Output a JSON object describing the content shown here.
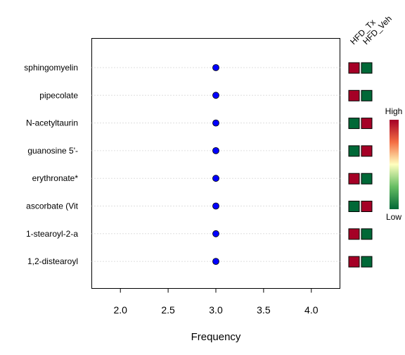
{
  "chart_data": {
    "type": "scatter",
    "xlabel": "Frequency",
    "xlim": [
      1.7,
      4.3
    ],
    "xticks": [
      2.0,
      2.5,
      3.0,
      3.5,
      4.0
    ],
    "xtick_labels": [
      "2.0",
      "2.5",
      "3.0",
      "3.5",
      "4.0"
    ],
    "grid": "horizontal dotted",
    "point_color": "#0000ff",
    "rows": [
      {
        "label": "sphingomyelin",
        "value": 3.0,
        "heat": [
          "high",
          "low"
        ]
      },
      {
        "label": "pipecolate",
        "value": 3.0,
        "heat": [
          "high",
          "low"
        ]
      },
      {
        "label": "N-acetyltaurin",
        "value": 3.0,
        "heat": [
          "low",
          "high"
        ]
      },
      {
        "label": "guanosine 5'-",
        "value": 3.0,
        "heat": [
          "low",
          "high"
        ]
      },
      {
        "label": "erythronate*",
        "value": 3.0,
        "heat": [
          "high",
          "low"
        ]
      },
      {
        "label": "ascorbate (Vit",
        "value": 3.0,
        "heat": [
          "low",
          "high"
        ]
      },
      {
        "label": "1-stearoyl-2-a",
        "value": 3.0,
        "heat": [
          "high",
          "low"
        ]
      },
      {
        "label": "1,2-distearoyl",
        "value": 3.0,
        "heat": [
          "high",
          "low"
        ]
      }
    ],
    "heatmap_columns": [
      "HFD_Tx",
      "HFD_Veh"
    ],
    "legend": {
      "high_label": "High",
      "low_label": "Low",
      "high_color": "#a50026",
      "low_color": "#006837"
    }
  }
}
